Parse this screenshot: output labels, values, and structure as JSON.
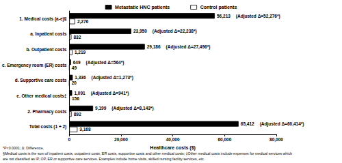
{
  "chart_data": {
    "type": "bar",
    "orientation": "horizontal",
    "categories": [
      "1. Medical costs (a-e)§",
      "a. Inpatient costs",
      "b. Outpatient costs",
      "c. Emergency room (ER) costs",
      "d. Supportive care costs",
      "e. Other medical costs‡",
      "2. Pharmacy costs",
      "Total costs (1 + 2)"
    ],
    "series": [
      {
        "name": "Metastatic HNC patients",
        "color": "#000000",
        "values": [
          56213,
          23950,
          29186,
          649,
          1336,
          1091,
          9199,
          65412
        ],
        "value_labels": [
          "56,213",
          "23,950",
          "29,186",
          "649",
          "1,336",
          "1,091",
          "9,199",
          "65,412"
        ]
      },
      {
        "name": "Control patients",
        "color": "#ffffff",
        "values": [
          2276,
          832,
          1219,
          49,
          20,
          156,
          892,
          3168
        ],
        "value_labels": [
          "2,276",
          "832",
          "1,219",
          "49",
          "20",
          "156",
          "892",
          "3,168"
        ]
      }
    ],
    "annotations": [
      "(Adjusted Δ=52,276*)",
      "(Adjusted Δ=22,238*)",
      "(Adjusted Δ=27,496*)",
      "(Adjusted Δ=564*)",
      "(Adjusted Δ=1,273*)",
      "(Adjusted Δ=941*)",
      "(Adjusted Δ=8,143*)",
      "(Adjusted Δ=60,414*)"
    ],
    "x_label": "Healthcare costs ($)",
    "xlim": [
      0,
      80000
    ],
    "xticks": [
      0,
      {
        "value": 20000,
        "label": "20,000"
      },
      {
        "value": 40000,
        "label": "40,000"
      },
      {
        "value": 60000,
        "label": "60,000"
      },
      {
        "value": 80000,
        "label": "80,000"
      }
    ],
    "footnotes": [
      "*P<0.0001; Δ: Difference,",
      "§Medical costs is the sum of inpatient costs, outpatient costs, ER costs, supportive costs and other medical costs; ‡Other medical costs include expenses for medical services which",
      "are not classified as IP, OP, ER or supportive care services. Examples include home visits, skilled nursing facility services, etc."
    ],
    "data_labels": true,
    "legend": "top",
    "grid": false
  }
}
